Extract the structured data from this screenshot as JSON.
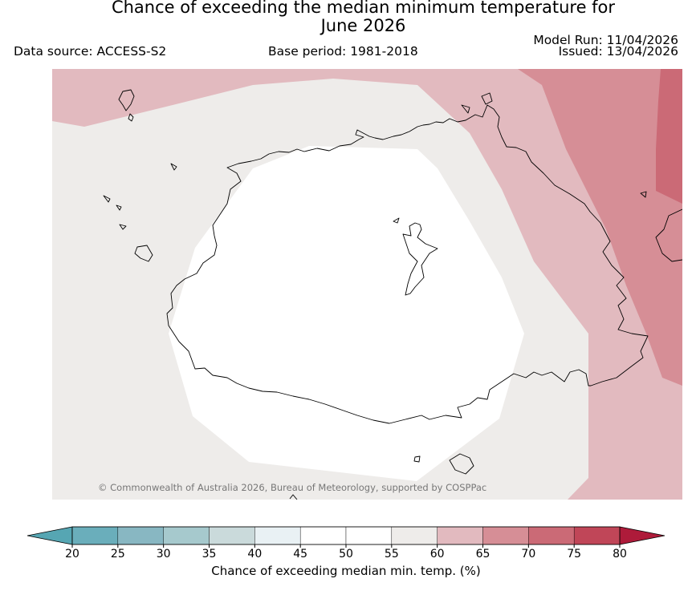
{
  "title": {
    "line1": "Chance of exceeding the median minimum temperature for",
    "line2": "June 2026"
  },
  "meta": {
    "data_source": "Data source: ACCESS-S2",
    "base_period": "Base period: 1981-2018",
    "model_run": "Model Run: 11/04/2026",
    "issued": "Issued: 13/04/2026"
  },
  "map": {
    "region": "Fiji",
    "copyright": "© Commonwealth of Australia 2026, Bureau of Meteorology, supported by COSPPac",
    "zones": [
      {
        "name": "45-55%",
        "color": "#ffffff"
      },
      {
        "name": "55-60%",
        "color": "#eeecea"
      },
      {
        "name": "60-65%",
        "color": "#e2babf"
      },
      {
        "name": "65-70%",
        "color": "#d68e96"
      },
      {
        "name": "70-75%",
        "color": "#cb6a76"
      }
    ]
  },
  "colorbar": {
    "label": "Chance of exceeding median min. temp. (%)",
    "ticks": [
      "20",
      "25",
      "30",
      "35",
      "40",
      "45",
      "50",
      "55",
      "60",
      "65",
      "70",
      "75",
      "80"
    ],
    "under_color": "#56a6b3",
    "over_color": "#ae1b3a",
    "colors": [
      "#6aaebb",
      "#88b7c2",
      "#a6c9cd",
      "#cadadb",
      "#e9f1f4",
      "#ffffff",
      "#ffffff",
      "#eeecea",
      "#e2babf",
      "#d68e96",
      "#cb6a76",
      "#c04658"
    ]
  }
}
